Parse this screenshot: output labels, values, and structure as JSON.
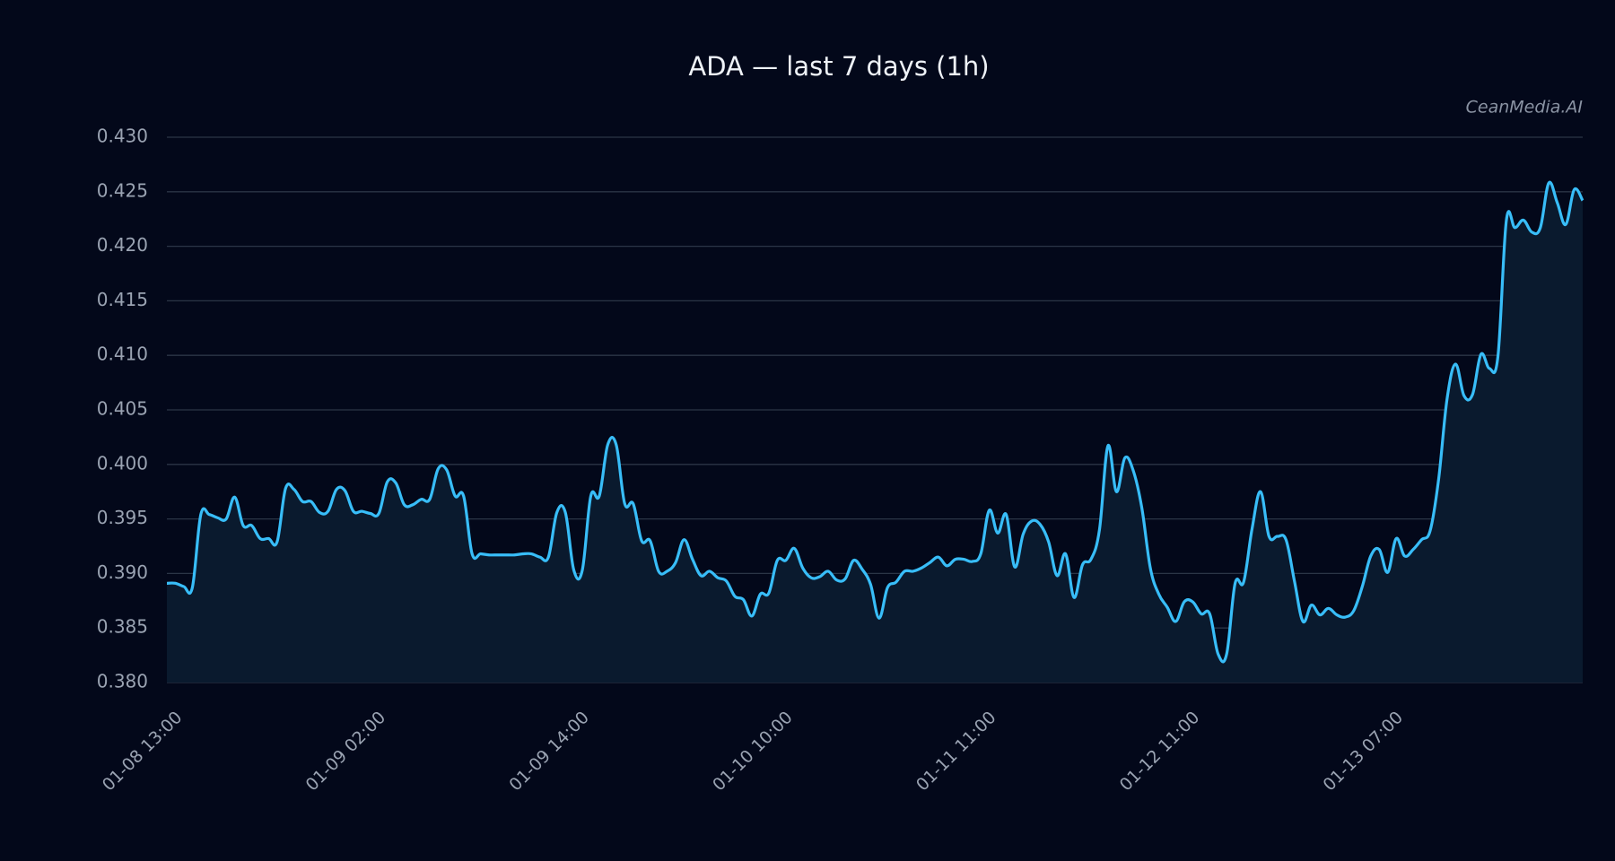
{
  "chart_data": {
    "type": "line",
    "title": "ADA — last 7 days (1h)",
    "watermark": "CeanMedia.AI",
    "categories": [
      "01-08 13:00",
      null,
      null,
      null,
      null,
      null,
      null,
      null,
      null,
      null,
      null,
      null,
      null,
      null,
      null,
      null,
      null,
      null,
      null,
      null,
      null,
      null,
      null,
      null,
      "01-09 02:00",
      null,
      null,
      null,
      null,
      null,
      null,
      null,
      null,
      null,
      null,
      null,
      null,
      null,
      null,
      null,
      null,
      null,
      null,
      null,
      null,
      null,
      null,
      null,
      "01-09 14:00",
      null,
      null,
      null,
      null,
      null,
      null,
      null,
      null,
      null,
      null,
      null,
      null,
      null,
      null,
      null,
      null,
      null,
      null,
      null,
      null,
      null,
      null,
      null,
      "01-10 10:00",
      null,
      null,
      null,
      null,
      null,
      null,
      null,
      null,
      null,
      null,
      null,
      null,
      null,
      null,
      null,
      null,
      null,
      null,
      null,
      null,
      null,
      null,
      null,
      "01-11 11:00",
      null,
      null,
      null,
      null,
      null,
      null,
      null,
      null,
      null,
      null,
      null,
      null,
      null,
      null,
      null,
      null,
      null,
      null,
      null,
      null,
      null,
      null,
      null,
      "01-12 11:00",
      null,
      null,
      null,
      null,
      null,
      null,
      null,
      null,
      null,
      null,
      null,
      null,
      null,
      null,
      null,
      null,
      null,
      null,
      null,
      null,
      null,
      null,
      null,
      "01-13 07:00",
      null,
      null,
      null,
      null,
      null,
      null,
      null,
      null,
      null,
      null,
      null,
      null,
      null,
      null,
      null,
      null,
      null,
      null,
      null,
      null,
      null,
      null,
      null
    ],
    "series": [
      {
        "name": "ADA",
        "color": "#38bdf8",
        "values": [
          0.3891,
          0.3891,
          0.3888,
          0.3887,
          0.3954,
          0.3954,
          0.3951,
          0.395,
          0.397,
          0.3944,
          0.3944,
          0.3932,
          0.3932,
          0.3929,
          0.3978,
          0.3977,
          0.3966,
          0.3966,
          0.3956,
          0.3957,
          0.3977,
          0.3976,
          0.3957,
          0.3957,
          0.3955,
          0.3955,
          0.3984,
          0.3983,
          0.3963,
          0.3963,
          0.3968,
          0.3968,
          0.3996,
          0.3995,
          0.3971,
          0.3971,
          0.3918,
          0.3918,
          0.3917,
          0.3917,
          0.3917,
          0.3917,
          0.3918,
          0.3918,
          0.3915,
          0.3915,
          0.3956,
          0.3956,
          0.3903,
          0.3903,
          0.3971,
          0.3971,
          0.4018,
          0.4018,
          0.3964,
          0.3964,
          0.393,
          0.393,
          0.3902,
          0.3902,
          0.391,
          0.3931,
          0.3913,
          0.3898,
          0.3902,
          0.3896,
          0.3893,
          0.3879,
          0.3876,
          0.3861,
          0.3881,
          0.3882,
          0.3912,
          0.3912,
          0.3923,
          0.3905,
          0.3896,
          0.3897,
          0.3902,
          0.3894,
          0.3895,
          0.3912,
          0.3904,
          0.389,
          0.3859,
          0.3887,
          0.3892,
          0.3902,
          0.3902,
          0.3905,
          0.391,
          0.3915,
          0.3907,
          0.3913,
          0.3913,
          0.3911,
          0.3918,
          0.3958,
          0.3937,
          0.3954,
          0.3906,
          0.3936,
          0.3948,
          0.3945,
          0.3929,
          0.3898,
          0.3918,
          0.3878,
          0.3908,
          0.3913,
          0.394,
          0.4017,
          0.3975,
          0.4006,
          0.3994,
          0.396,
          0.3905,
          0.3881,
          0.3869,
          0.3856,
          0.3874,
          0.3874,
          0.3863,
          0.3863,
          0.3826,
          0.3826,
          0.3891,
          0.3892,
          0.3941,
          0.3975,
          0.3934,
          0.3934,
          0.3931,
          0.3893,
          0.3856,
          0.3871,
          0.3862,
          0.3868,
          0.3862,
          0.386,
          0.3866,
          0.3888,
          0.3916,
          0.3922,
          0.3901,
          0.3932,
          0.3916,
          0.3922,
          0.3931,
          0.3939,
          0.3986,
          0.406,
          0.4092,
          0.4063,
          0.4064,
          0.4101,
          0.4088,
          0.4099,
          0.4224,
          0.4217,
          0.4224,
          0.4213,
          0.4217,
          0.4258,
          0.424,
          0.422,
          0.4252,
          0.4242
        ]
      }
    ],
    "ylim": [
      0.38,
      0.43
    ],
    "yticks": [
      {
        "value": 0.38,
        "label": "0.380"
      },
      {
        "value": 0.385,
        "label": "0.385"
      },
      {
        "value": 0.39,
        "label": "0.390"
      },
      {
        "value": 0.395,
        "label": "0.395"
      },
      {
        "value": 0.4,
        "label": "0.400"
      },
      {
        "value": 0.405,
        "label": "0.405"
      },
      {
        "value": 0.41,
        "label": "0.410"
      },
      {
        "value": 0.415,
        "label": "0.415"
      },
      {
        "value": 0.42,
        "label": "0.420"
      },
      {
        "value": 0.425,
        "label": "0.425"
      },
      {
        "value": 0.43,
        "label": "0.430"
      }
    ],
    "grid": true,
    "area_fill": "#0a1a2e"
  }
}
